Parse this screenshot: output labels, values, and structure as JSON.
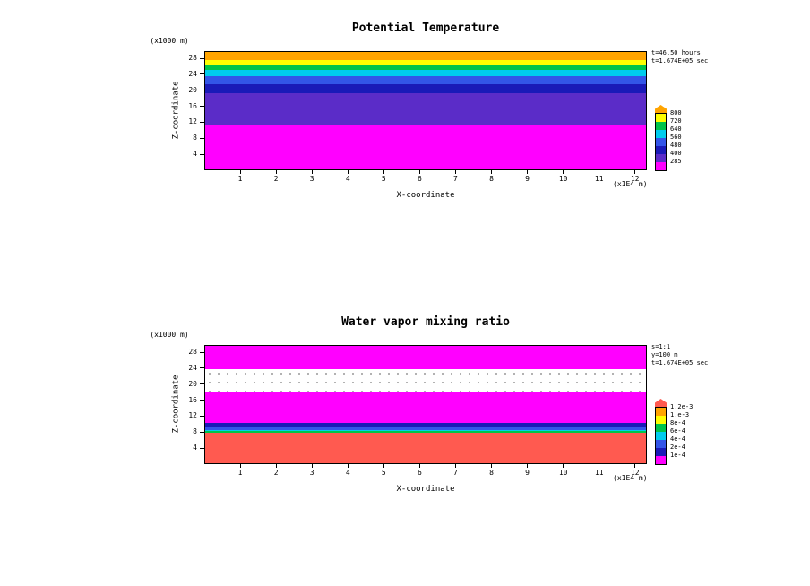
{
  "page": {
    "background": "#FFFFFF"
  },
  "axes": {
    "y_max_km": 29.8,
    "x_max_1e4m": 12.33
  },
  "panels": [
    {
      "title": "Potential Temperature",
      "ylabel": "Z-coordinate",
      "xlabel": "X-coordinate",
      "y_unit": "(x1000 m)",
      "x_unit": "(x1E4 m)",
      "y_ticks": [
        "28",
        "24",
        "20",
        "16",
        "12",
        "8",
        "4"
      ],
      "x_ticks": [
        "1",
        "2",
        "3",
        "4",
        "5",
        "6",
        "7",
        "8",
        "9",
        "10",
        "11",
        "12"
      ],
      "annotations": [
        "t=46.50 hours",
        "t=1.674E+05 sec"
      ],
      "bands_top_to_bottom": [
        {
          "name": "orange-band",
          "color": "#FFA400",
          "height_pct": 6.7
        },
        {
          "name": "yellow-band",
          "color": "#FFFF00",
          "height_pct": 4.0
        },
        {
          "name": "green-band",
          "color": "#00C44A",
          "height_pct": 4.7
        },
        {
          "name": "cyan-band",
          "color": "#00CCEE",
          "height_pct": 5.4
        },
        {
          "name": "blue-band",
          "color": "#3355E8",
          "height_pct": 6.7
        },
        {
          "name": "navy-band",
          "color": "#1A1AB8",
          "height_pct": 7.7
        },
        {
          "name": "purple-band",
          "color": "#5B2CC8",
          "height_pct": 26.8
        },
        {
          "name": "magenta-band",
          "color": "#FF00FF",
          "height_pct": 38.0
        }
      ],
      "colorbar": {
        "arrow_color": "#FFA400",
        "patches_top_to_bottom": [
          "#FFFF00",
          "#00C44A",
          "#00CCEE",
          "#3355E8",
          "#1A1AB8",
          "#5B2CC8",
          "#FF00FF"
        ],
        "labels_top_to_bottom": [
          "800",
          "720",
          "640",
          "560",
          "480",
          "400",
          "285"
        ]
      }
    },
    {
      "title": "Water vapor mixing ratio",
      "ylabel": "Z-coordinate",
      "xlabel": "X-coordinate",
      "y_unit": "(x1000 m)",
      "x_unit": "(x1E4 m)",
      "y_ticks": [
        "28",
        "24",
        "20",
        "16",
        "12",
        "8",
        "4"
      ],
      "x_ticks": [
        "1",
        "2",
        "3",
        "4",
        "5",
        "6",
        "7",
        "8",
        "9",
        "10",
        "11",
        "12"
      ],
      "annotations": [
        "s=1:1",
        "y=100 m",
        "t=1.674E+05 sec"
      ],
      "bands_top_to_bottom": [
        {
          "name": "magenta-upper-band",
          "color": "#FF00FF",
          "height_pct": 19.5
        },
        {
          "name": "white-dotted-band",
          "color": "#FFFFFF",
          "height_pct": 20.1,
          "dotted": true
        },
        {
          "name": "magenta-mid-band",
          "color": "#FF00FF",
          "height_pct": 25.8
        },
        {
          "name": "navy-band",
          "color": "#1A1AB8",
          "height_pct": 3.4
        },
        {
          "name": "blue-band",
          "color": "#3355E8",
          "height_pct": 2.7
        },
        {
          "name": "cyan-band",
          "color": "#00CCEE",
          "height_pct": 1.0
        },
        {
          "name": "green-band",
          "color": "#00C44A",
          "height_pct": 1.3
        },
        {
          "name": "salmon-band",
          "color": "#FF5A50",
          "height_pct": 26.2
        }
      ],
      "colorbar": {
        "arrow_color": "#FF5A50",
        "patches_top_to_bottom": [
          "#FFA400",
          "#FFFF00",
          "#00C44A",
          "#00CCEE",
          "#3355E8",
          "#1A1AB8",
          "#FF00FF"
        ],
        "labels_top_to_bottom": [
          "1.2e-3",
          "1.e-3",
          "8e-4",
          "6e-4",
          "4e-4",
          "2e-4",
          "1e-4"
        ]
      }
    }
  ],
  "chart_data": [
    {
      "type": "heatmap",
      "title": "Potential Temperature",
      "xlabel": "X-coordinate (x1E4 m)",
      "ylabel": "Z-coordinate (x1000 m)",
      "xlim": [
        0,
        12.33
      ],
      "ylim": [
        0,
        29.8
      ],
      "annotations": [
        "t=46.50 hours",
        "t=1.674E+05 sec"
      ],
      "legend_position": "right-colorbar",
      "grid": false,
      "layers_bottom_to_top": [
        {
          "z_km_from": 0,
          "z_km_to": 11.3,
          "color": "magenta"
        },
        {
          "z_km_from": 11.3,
          "z_km_to": 19.3,
          "color": "purple"
        },
        {
          "z_km_from": 19.3,
          "z_km_to": 21.6,
          "color": "navy"
        },
        {
          "z_km_from": 21.6,
          "z_km_to": 23.6,
          "color": "blue"
        },
        {
          "z_km_from": 23.6,
          "z_km_to": 25.2,
          "color": "cyan"
        },
        {
          "z_km_from": 25.2,
          "z_km_to": 26.6,
          "color": "green"
        },
        {
          "z_km_from": 26.6,
          "z_km_to": 27.8,
          "color": "yellow"
        },
        {
          "z_km_from": 27.8,
          "z_km_to": 29.8,
          "color": "orange"
        }
      ],
      "colorbar_labels_top_to_bottom": [
        "800",
        "720",
        "640",
        "560",
        "480",
        "400",
        "285"
      ]
    },
    {
      "type": "heatmap",
      "title": "Water vapor mixing ratio",
      "xlabel": "X-coordinate (x1E4 m)",
      "ylabel": "Z-coordinate (x1000 m)",
      "xlim": [
        0,
        12.33
      ],
      "ylim": [
        0,
        29.8
      ],
      "annotations": [
        "s=1:1",
        "y=100 m",
        "t=1.674E+05 sec"
      ],
      "legend_position": "right-colorbar",
      "grid": false,
      "layers_bottom_to_top": [
        {
          "z_km_from": 0,
          "z_km_to": 7.8,
          "color": "salmon-red"
        },
        {
          "z_km_from": 7.8,
          "z_km_to": 8.2,
          "color": "green"
        },
        {
          "z_km_from": 8.2,
          "z_km_to": 8.5,
          "color": "cyan"
        },
        {
          "z_km_from": 8.5,
          "z_km_to": 9.3,
          "color": "blue"
        },
        {
          "z_km_from": 9.3,
          "z_km_to": 10.3,
          "color": "navy"
        },
        {
          "z_km_from": 10.3,
          "z_km_to": 18.0,
          "color": "magenta"
        },
        {
          "z_km_from": 18.0,
          "z_km_to": 24.0,
          "color": "white-dotted"
        },
        {
          "z_km_from": 24.0,
          "z_km_to": 29.8,
          "color": "magenta"
        }
      ],
      "colorbar_labels_top_to_bottom": [
        "1.2e-3",
        "1.e-3",
        "8e-4",
        "6e-4",
        "4e-4",
        "2e-4",
        "1e-4"
      ]
    }
  ]
}
